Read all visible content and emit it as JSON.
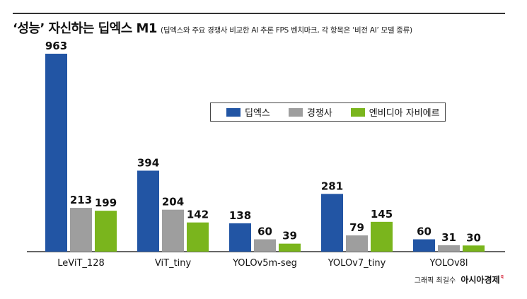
{
  "title": "‘성능’ 자신하는 딥엑스 M1",
  "subtitle": "(딥엑스와 주요 경쟁사 비교한 AI 추론 FPS 벤치마크, 각 항목은 ‘비전 AI’ 모델 종류)",
  "credit": {
    "label": "그래픽 최길수",
    "brand": "아시아경제",
    "mark": "q"
  },
  "chart_data": {
    "type": "bar",
    "categories": [
      "LeViT_128",
      "ViT_tiny",
      "YOLOv5m-seg",
      "YOLOv7_tiny",
      "YOLOv8l"
    ],
    "series": [
      {
        "name": "딥엑스",
        "color": "#2255a4",
        "values": [
          963,
          394,
          138,
          281,
          60
        ]
      },
      {
        "name": "경쟁사",
        "color": "#9e9e9e",
        "values": [
          213,
          204,
          60,
          79,
          31
        ]
      },
      {
        "name": "엔비디아 자비에르",
        "color": "#7ab51d",
        "values": [
          199,
          142,
          39,
          145,
          30
        ]
      }
    ],
    "title": "‘성능’ 자신하는 딥엑스 M1",
    "xlabel": "",
    "ylabel": "",
    "ylim": [
      0,
      963
    ],
    "grid": false,
    "legend_position": "center-right"
  }
}
